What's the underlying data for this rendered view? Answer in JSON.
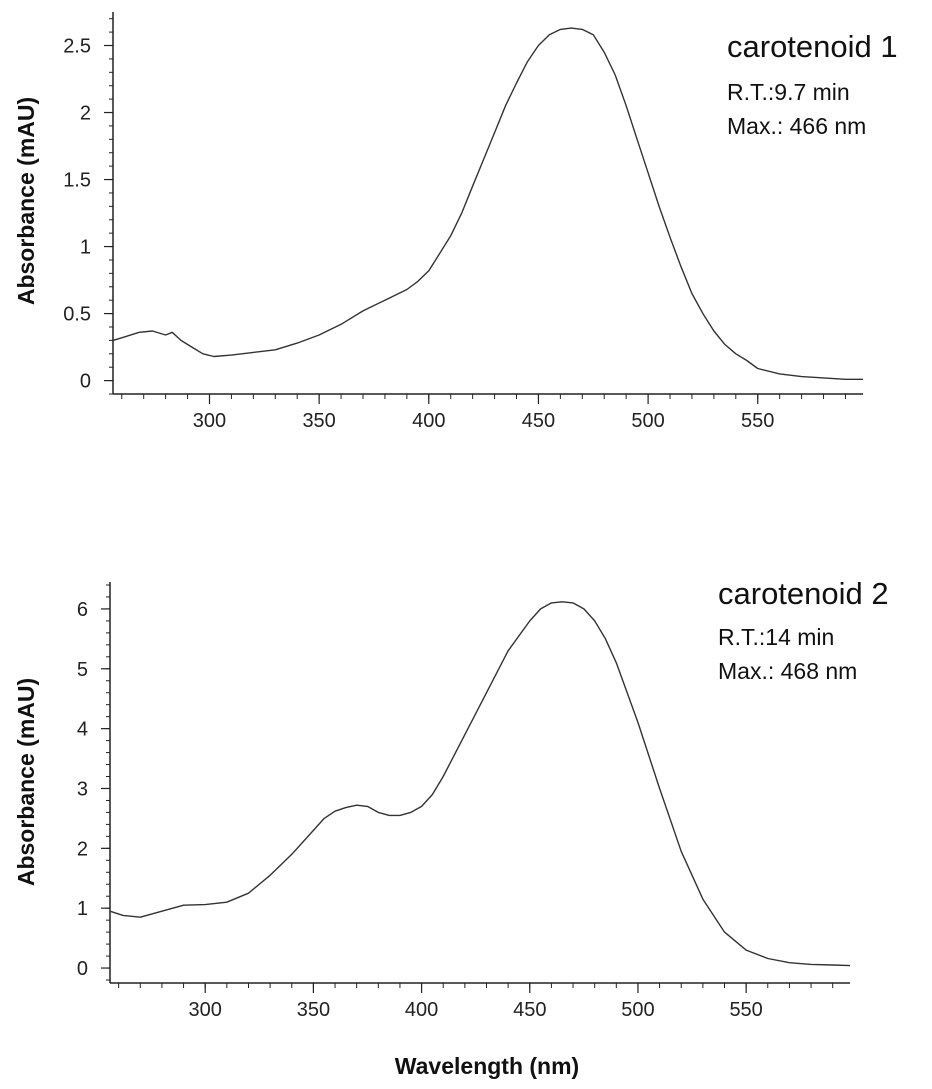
{
  "shared_xlabel": "Wavelength (nm)",
  "chart_data": [
    {
      "type": "line",
      "title": "",
      "xlabel": "",
      "ylabel": "Absorbance (mAU)",
      "xlim": [
        256,
        598
      ],
      "ylim": [
        -0.1,
        2.75
      ],
      "x_ticks": [
        300,
        350,
        400,
        450,
        500,
        550
      ],
      "y_ticks": [
        0,
        0.5,
        1,
        1.5,
        2,
        2.5
      ],
      "annotation": {
        "title": "carotenoid 1",
        "lines": [
          "R.T.:9.7 min",
          "Max.: 466 nm"
        ]
      },
      "series": [
        {
          "x": [
            256,
            262,
            268,
            274,
            280,
            283,
            287,
            292,
            297,
            302,
            310,
            320,
            330,
            340,
            350,
            360,
            370,
            380,
            390,
            395,
            400,
            405,
            410,
            415,
            420,
            425,
            430,
            435,
            440,
            445,
            450,
            455,
            460,
            465,
            470,
            475,
            480,
            485,
            490,
            495,
            500,
            505,
            510,
            515,
            520,
            525,
            530,
            535,
            540,
            545,
            550,
            560,
            570,
            580,
            590,
            598
          ],
          "y": [
            0.3,
            0.33,
            0.36,
            0.37,
            0.34,
            0.36,
            0.3,
            0.25,
            0.2,
            0.18,
            0.19,
            0.21,
            0.23,
            0.28,
            0.34,
            0.42,
            0.52,
            0.6,
            0.68,
            0.74,
            0.82,
            0.95,
            1.08,
            1.25,
            1.45,
            1.65,
            1.85,
            2.05,
            2.22,
            2.38,
            2.5,
            2.58,
            2.62,
            2.63,
            2.62,
            2.58,
            2.45,
            2.28,
            2.05,
            1.8,
            1.55,
            1.3,
            1.07,
            0.85,
            0.65,
            0.5,
            0.37,
            0.27,
            0.2,
            0.15,
            0.09,
            0.05,
            0.03,
            0.02,
            0.01,
            0.01
          ]
        }
      ]
    },
    {
      "type": "line",
      "title": "",
      "xlabel": "",
      "ylabel": "Absorbance (mAU)",
      "xlim": [
        256,
        598
      ],
      "ylim": [
        -0.25,
        6.45
      ],
      "x_ticks": [
        300,
        350,
        400,
        450,
        500,
        550
      ],
      "y_ticks": [
        0,
        1,
        2,
        3,
        4,
        5,
        6
      ],
      "annotation": {
        "title": "carotenoid 2",
        "lines": [
          "R.T.:14 min",
          "Max.: 468 nm"
        ]
      },
      "series": [
        {
          "x": [
            256,
            262,
            270,
            280,
            290,
            300,
            310,
            320,
            330,
            340,
            350,
            355,
            360,
            365,
            370,
            375,
            380,
            385,
            390,
            395,
            400,
            405,
            410,
            415,
            420,
            430,
            440,
            450,
            455,
            460,
            465,
            470,
            475,
            480,
            485,
            490,
            500,
            510,
            520,
            530,
            540,
            550,
            560,
            570,
            580,
            590,
            598
          ],
          "y": [
            0.95,
            0.88,
            0.85,
            0.95,
            1.05,
            1.06,
            1.1,
            1.25,
            1.55,
            1.9,
            2.3,
            2.5,
            2.62,
            2.68,
            2.72,
            2.7,
            2.6,
            2.55,
            2.55,
            2.6,
            2.7,
            2.9,
            3.2,
            3.55,
            3.9,
            4.6,
            5.3,
            5.8,
            6.0,
            6.1,
            6.12,
            6.1,
            6.0,
            5.8,
            5.5,
            5.1,
            4.1,
            3.0,
            1.95,
            1.15,
            0.6,
            0.3,
            0.16,
            0.09,
            0.06,
            0.05,
            0.04
          ]
        }
      ]
    }
  ]
}
